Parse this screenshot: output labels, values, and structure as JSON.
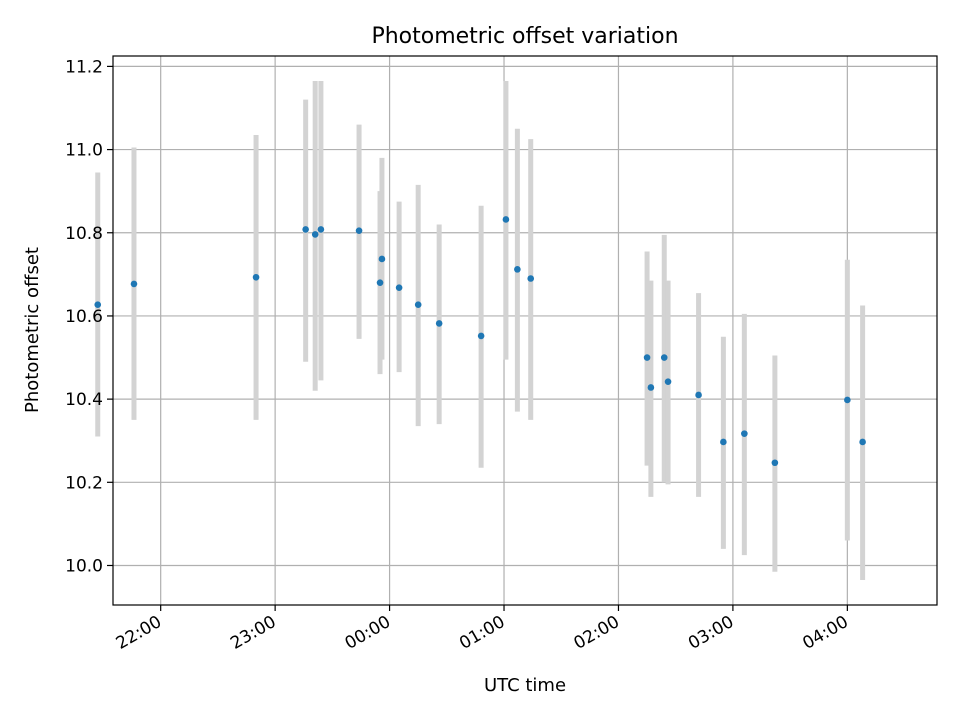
{
  "chart_data": {
    "type": "scatter",
    "title": "Photometric offset variation",
    "xlabel": "UTC time",
    "ylabel": "Photometric offset",
    "xlim": [
      "21:35",
      "04:47"
    ],
    "ylim": [
      9.905,
      11.225
    ],
    "x_ticks": [
      "22:00",
      "23:00",
      "00:00",
      "01:00",
      "02:00",
      "03:00",
      "04:00"
    ],
    "y_ticks": [
      "10.0",
      "10.2",
      "10.4",
      "10.6",
      "10.8",
      "11.0",
      "11.2"
    ],
    "grid": true,
    "marker_color": "#1f77b4",
    "errorbar_color": "#d3d3d3",
    "points": [
      {
        "t": "21:27",
        "y": 10.627,
        "low": 10.31,
        "high": 10.945
      },
      {
        "t": "21:46",
        "y": 10.677,
        "low": 10.35,
        "high": 11.005
      },
      {
        "t": "22:50",
        "y": 10.693,
        "low": 10.35,
        "high": 11.035
      },
      {
        "t": "23:16",
        "y": 10.808,
        "low": 10.49,
        "high": 11.12
      },
      {
        "t": "23:21",
        "y": 10.796,
        "low": 10.42,
        "high": 11.165
      },
      {
        "t": "23:24",
        "y": 10.808,
        "low": 10.445,
        "high": 11.165
      },
      {
        "t": "23:44",
        "y": 10.805,
        "low": 10.545,
        "high": 11.06
      },
      {
        "t": "23:55",
        "y": 10.68,
        "low": 10.46,
        "high": 10.9
      },
      {
        "t": "23:56",
        "y": 10.737,
        "low": 10.495,
        "high": 10.98
      },
      {
        "t": "00:05",
        "y": 10.668,
        "low": 10.465,
        "high": 10.875
      },
      {
        "t": "00:15",
        "y": 10.627,
        "low": 10.335,
        "high": 10.915
      },
      {
        "t": "00:26",
        "y": 10.582,
        "low": 10.34,
        "high": 10.82
      },
      {
        "t": "00:48",
        "y": 10.552,
        "low": 10.235,
        "high": 10.865
      },
      {
        "t": "01:01",
        "y": 10.832,
        "low": 10.495,
        "high": 11.165
      },
      {
        "t": "01:07",
        "y": 10.712,
        "low": 10.37,
        "high": 11.05
      },
      {
        "t": "01:14",
        "y": 10.69,
        "low": 10.35,
        "high": 11.025
      },
      {
        "t": "02:15",
        "y": 10.5,
        "low": 10.24,
        "high": 10.755
      },
      {
        "t": "02:17",
        "y": 10.428,
        "low": 10.165,
        "high": 10.685
      },
      {
        "t": "02:24",
        "y": 10.5,
        "low": 10.2,
        "high": 10.795
      },
      {
        "t": "02:26",
        "y": 10.442,
        "low": 10.195,
        "high": 10.685
      },
      {
        "t": "02:42",
        "y": 10.41,
        "low": 10.165,
        "high": 10.655
      },
      {
        "t": "02:55",
        "y": 10.297,
        "low": 10.04,
        "high": 10.55
      },
      {
        "t": "03:06",
        "y": 10.317,
        "low": 10.025,
        "high": 10.605
      },
      {
        "t": "03:22",
        "y": 10.247,
        "low": 9.985,
        "high": 10.505
      },
      {
        "t": "04:00",
        "y": 10.398,
        "low": 10.06,
        "high": 10.735
      },
      {
        "t": "04:08",
        "y": 10.297,
        "low": 9.965,
        "high": 10.625
      }
    ]
  }
}
